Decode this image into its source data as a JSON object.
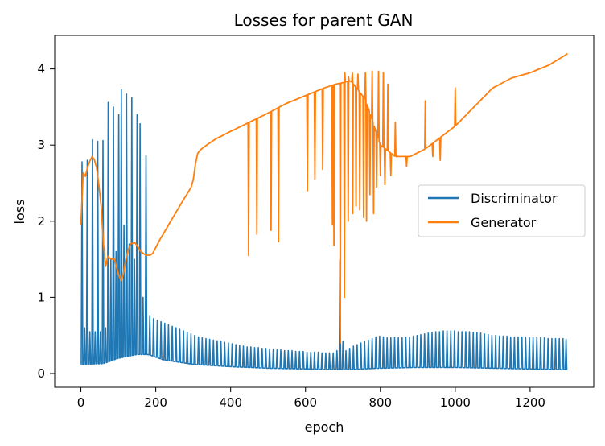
{
  "chart_data": {
    "type": "line",
    "title": "Losses for parent GAN",
    "xlabel": "epoch",
    "ylabel": "loss",
    "xlim": [
      -70,
      1370
    ],
    "ylim": [
      -0.18,
      4.44
    ],
    "xticks": [
      0,
      200,
      400,
      600,
      800,
      1000,
      1200
    ],
    "yticks": [
      0,
      1,
      2,
      3,
      4
    ],
    "grid": false,
    "legend_position": "center-right",
    "series": [
      {
        "name": "Discriminator",
        "color": "#1f77b4",
        "baseline": [
          [
            0,
            0.12
          ],
          [
            60,
            0.13
          ],
          [
            100,
            0.2
          ],
          [
            150,
            0.25
          ],
          [
            180,
            0.25
          ],
          [
            220,
            0.18
          ],
          [
            300,
            0.12
          ],
          [
            400,
            0.09
          ],
          [
            500,
            0.07
          ],
          [
            600,
            0.06
          ],
          [
            700,
            0.05
          ],
          [
            800,
            0.07
          ],
          [
            900,
            0.08
          ],
          [
            1000,
            0.08
          ],
          [
            1100,
            0.07
          ],
          [
            1200,
            0.06
          ],
          [
            1300,
            0.05
          ]
        ],
        "spikes": [
          [
            3,
            2.78
          ],
          [
            10,
            0.6
          ],
          [
            17,
            2.8
          ],
          [
            24,
            0.55
          ],
          [
            31,
            3.07
          ],
          [
            38,
            0.55
          ],
          [
            45,
            3.05
          ],
          [
            52,
            0.55
          ],
          [
            59,
            3.06
          ],
          [
            66,
            0.6
          ],
          [
            73,
            3.56
          ],
          [
            80,
            1.5
          ],
          [
            87,
            3.5
          ],
          [
            94,
            1.6
          ],
          [
            101,
            3.4
          ],
          [
            108,
            3.73
          ],
          [
            115,
            1.95
          ],
          [
            122,
            3.67
          ],
          [
            129,
            1.7
          ],
          [
            136,
            3.62
          ],
          [
            143,
            1.5
          ],
          [
            150,
            3.4
          ],
          [
            158,
            3.28
          ],
          [
            166,
            1.0
          ],
          [
            174,
            2.86
          ],
          [
            184,
            0.76
          ],
          [
            194,
            0.72
          ],
          [
            204,
            0.7
          ],
          [
            214,
            0.68
          ],
          [
            224,
            0.66
          ],
          [
            234,
            0.64
          ],
          [
            244,
            0.62
          ],
          [
            254,
            0.6
          ],
          [
            264,
            0.58
          ],
          [
            274,
            0.56
          ],
          [
            284,
            0.54
          ],
          [
            294,
            0.52
          ],
          [
            304,
            0.5
          ],
          [
            314,
            0.48
          ],
          [
            324,
            0.47
          ],
          [
            334,
            0.46
          ],
          [
            344,
            0.45
          ],
          [
            354,
            0.44
          ],
          [
            364,
            0.43
          ],
          [
            374,
            0.42
          ],
          [
            384,
            0.41
          ],
          [
            394,
            0.4
          ],
          [
            404,
            0.39
          ],
          [
            414,
            0.38
          ],
          [
            424,
            0.37
          ],
          [
            434,
            0.36
          ],
          [
            444,
            0.35
          ],
          [
            454,
            0.35
          ],
          [
            464,
            0.34
          ],
          [
            474,
            0.34
          ],
          [
            484,
            0.33
          ],
          [
            494,
            0.33
          ],
          [
            504,
            0.32
          ],
          [
            514,
            0.32
          ],
          [
            524,
            0.31
          ],
          [
            534,
            0.31
          ],
          [
            544,
            0.3
          ],
          [
            554,
            0.3
          ],
          [
            564,
            0.3
          ],
          [
            574,
            0.29
          ],
          [
            584,
            0.29
          ],
          [
            594,
            0.29
          ],
          [
            604,
            0.28
          ],
          [
            614,
            0.28
          ],
          [
            624,
            0.28
          ],
          [
            634,
            0.28
          ],
          [
            644,
            0.27
          ],
          [
            654,
            0.27
          ],
          [
            664,
            0.27
          ],
          [
            674,
            0.27
          ],
          [
            684,
            0.3
          ],
          [
            692,
            1.5
          ],
          [
            700,
            0.42
          ],
          [
            708,
            0.3
          ],
          [
            718,
            0.33
          ],
          [
            728,
            0.36
          ],
          [
            738,
            0.38
          ],
          [
            748,
            0.4
          ],
          [
            758,
            0.42
          ],
          [
            768,
            0.44
          ],
          [
            778,
            0.46
          ],
          [
            788,
            0.48
          ],
          [
            798,
            0.49
          ],
          [
            808,
            0.48
          ],
          [
            818,
            0.47
          ],
          [
            828,
            0.47
          ],
          [
            838,
            0.47
          ],
          [
            848,
            0.47
          ],
          [
            858,
            0.47
          ],
          [
            868,
            0.47
          ],
          [
            878,
            0.48
          ],
          [
            888,
            0.49
          ],
          [
            898,
            0.5
          ],
          [
            908,
            0.51
          ],
          [
            918,
            0.52
          ],
          [
            928,
            0.53
          ],
          [
            938,
            0.54
          ],
          [
            948,
            0.55
          ],
          [
            958,
            0.55
          ],
          [
            968,
            0.56
          ],
          [
            978,
            0.56
          ],
          [
            988,
            0.56
          ],
          [
            998,
            0.56
          ],
          [
            1008,
            0.55
          ],
          [
            1018,
            0.55
          ],
          [
            1028,
            0.55
          ],
          [
            1038,
            0.55
          ],
          [
            1048,
            0.54
          ],
          [
            1058,
            0.54
          ],
          [
            1068,
            0.53
          ],
          [
            1078,
            0.52
          ],
          [
            1088,
            0.51
          ],
          [
            1098,
            0.5
          ],
          [
            1108,
            0.5
          ],
          [
            1118,
            0.49
          ],
          [
            1128,
            0.49
          ],
          [
            1138,
            0.49
          ],
          [
            1148,
            0.48
          ],
          [
            1158,
            0.48
          ],
          [
            1168,
            0.48
          ],
          [
            1178,
            0.48
          ],
          [
            1188,
            0.48
          ],
          [
            1198,
            0.47
          ],
          [
            1208,
            0.47
          ],
          [
            1218,
            0.47
          ],
          [
            1228,
            0.47
          ],
          [
            1238,
            0.47
          ],
          [
            1248,
            0.46
          ],
          [
            1258,
            0.46
          ],
          [
            1268,
            0.46
          ],
          [
            1278,
            0.46
          ],
          [
            1288,
            0.46
          ],
          [
            1296,
            0.45
          ]
        ]
      },
      {
        "name": "Generator",
        "color": "#ff7f0e",
        "trend": [
          [
            0,
            1.95
          ],
          [
            3,
            2.7
          ],
          [
            10,
            2.55
          ],
          [
            20,
            2.75
          ],
          [
            30,
            2.85
          ],
          [
            40,
            2.78
          ],
          [
            50,
            2.4
          ],
          [
            58,
            2.0
          ],
          [
            63,
            1.3
          ],
          [
            70,
            1.55
          ],
          [
            80,
            1.5
          ],
          [
            90,
            1.5
          ],
          [
            100,
            1.3
          ],
          [
            110,
            1.2
          ],
          [
            120,
            1.5
          ],
          [
            130,
            1.7
          ],
          [
            145,
            1.72
          ],
          [
            160,
            1.6
          ],
          [
            175,
            1.55
          ],
          [
            190,
            1.56
          ],
          [
            210,
            1.75
          ],
          [
            240,
            2.0
          ],
          [
            270,
            2.25
          ],
          [
            295,
            2.45
          ],
          [
            303,
            2.6
          ],
          [
            308,
            2.85
          ],
          [
            315,
            2.92
          ],
          [
            330,
            2.98
          ],
          [
            360,
            3.08
          ],
          [
            400,
            3.18
          ],
          [
            450,
            3.3
          ],
          [
            500,
            3.42
          ],
          [
            550,
            3.55
          ],
          [
            600,
            3.65
          ],
          [
            650,
            3.75
          ],
          [
            680,
            3.8
          ],
          [
            700,
            3.82
          ],
          [
            720,
            3.85
          ],
          [
            760,
            3.6
          ],
          [
            800,
            3.0
          ],
          [
            840,
            2.85
          ],
          [
            880,
            2.85
          ],
          [
            920,
            2.95
          ],
          [
            960,
            3.1
          ],
          [
            1000,
            3.25
          ],
          [
            1050,
            3.5
          ],
          [
            1100,
            3.75
          ],
          [
            1150,
            3.88
          ],
          [
            1200,
            3.95
          ],
          [
            1250,
            4.05
          ],
          [
            1300,
            4.2
          ]
        ],
        "dips": [
          [
            448,
            1.55
          ],
          [
            470,
            1.83
          ],
          [
            508,
            1.88
          ],
          [
            528,
            1.73
          ],
          [
            605,
            2.4
          ],
          [
            625,
            2.55
          ],
          [
            646,
            2.68
          ],
          [
            672,
            1.95
          ],
          [
            676,
            1.68
          ],
          [
            693,
            0.4
          ],
          [
            704,
            1.0
          ],
          [
            714,
            2.0
          ],
          [
            726,
            2.1
          ],
          [
            735,
            2.2
          ],
          [
            745,
            2.15
          ],
          [
            755,
            2.05
          ],
          [
            763,
            2.0
          ],
          [
            772,
            2.35
          ],
          [
            782,
            2.1
          ],
          [
            790,
            2.45
          ],
          [
            800,
            2.6
          ],
          [
            812,
            2.48
          ],
          [
            828,
            2.6
          ],
          [
            870,
            2.72
          ],
          [
            940,
            2.85
          ],
          [
            960,
            2.8
          ]
        ],
        "peaks": [
          [
            705,
            3.95
          ],
          [
            715,
            3.9
          ],
          [
            725,
            3.95
          ],
          [
            740,
            3.93
          ],
          [
            760,
            3.95
          ],
          [
            778,
            3.97
          ],
          [
            795,
            3.97
          ],
          [
            808,
            3.95
          ],
          [
            820,
            3.8
          ],
          [
            840,
            3.3
          ],
          [
            920,
            3.58
          ],
          [
            1000,
            3.75
          ]
        ]
      }
    ]
  }
}
